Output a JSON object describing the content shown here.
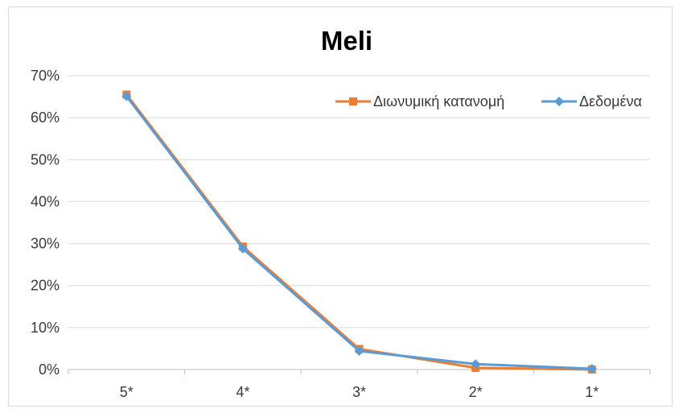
{
  "chart_data": {
    "type": "line",
    "title": "Meli",
    "xlabel": "",
    "ylabel": "",
    "categories": [
      "5*",
      "4*",
      "3*",
      "2*",
      "1*"
    ],
    "ylim": [
      0,
      0.7
    ],
    "yticks": [
      0,
      0.1,
      0.2,
      0.3,
      0.4,
      0.5,
      0.6,
      0.7
    ],
    "ytick_labels": [
      "0%",
      "10%",
      "20%",
      "30%",
      "40%",
      "50%",
      "60%",
      "70%"
    ],
    "grid": true,
    "legend_position": "top-right",
    "series": [
      {
        "name": "Διωνυμική κατανομή",
        "color": "#ed7d31",
        "marker": "square",
        "values": [
          0.655,
          0.293,
          0.049,
          0.004,
          0.0
        ]
      },
      {
        "name": "Δεδομένα",
        "color": "#5b9bd5",
        "marker": "diamond",
        "values": [
          0.651,
          0.288,
          0.044,
          0.013,
          0.002
        ]
      }
    ]
  }
}
